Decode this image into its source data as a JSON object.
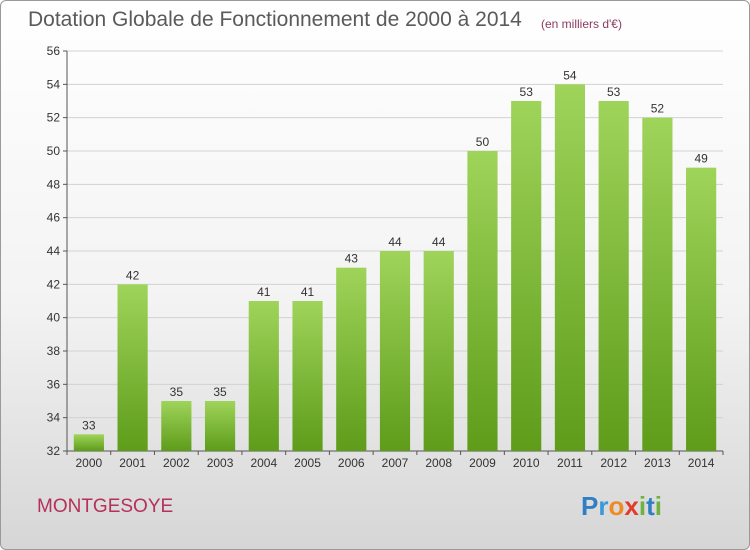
{
  "header": {
    "title": "Dotation Globale de Fonctionnement de 2000 à 2014",
    "unit": "(en milliers d'€)"
  },
  "footer": {
    "commune": "MONTGESOYE",
    "logo": {
      "letters": [
        "P",
        "r",
        "o",
        "x",
        "i",
        "t",
        "i"
      ],
      "colors": [
        "#2f7fc4",
        "#3a9ad9",
        "#f08a24",
        "#e23b2a",
        "#6cb33f",
        "#2f7fc4",
        "#6cb33f"
      ]
    }
  },
  "colors": {
    "bar_top": "#9fd45a",
    "bar_bottom": "#5e9c1a",
    "grid": "#d2d2d2",
    "axis": "#555555"
  },
  "chart_data": {
    "type": "bar",
    "title": "Dotation Globale de Fonctionnement de 2000 à 2014",
    "subtitle": "(en milliers d'€)",
    "categories": [
      "2000",
      "2001",
      "2002",
      "2003",
      "2004",
      "2005",
      "2006",
      "2007",
      "2008",
      "2009",
      "2010",
      "2011",
      "2012",
      "2013",
      "2014"
    ],
    "values": [
      33,
      42,
      35,
      35,
      41,
      41,
      43,
      44,
      44,
      50,
      53,
      54,
      53,
      52,
      49
    ],
    "ylim": [
      32,
      56
    ],
    "yticks": [
      32,
      34,
      36,
      38,
      40,
      42,
      44,
      46,
      48,
      50,
      52,
      54,
      56
    ],
    "grid": true,
    "legend": "none"
  }
}
